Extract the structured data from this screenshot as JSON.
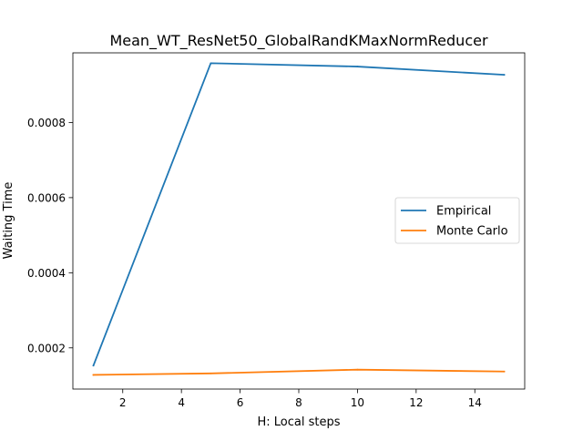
{
  "chart_data": {
    "type": "line",
    "title": "Mean_WT_ResNet50_GlobalRandKMaxNormReducer",
    "xlabel": "H: Local steps",
    "ylabel": "Waiting Time",
    "xlim": [
      0.3,
      15.7
    ],
    "ylim": [
      9.03e-05,
      0.0009855
    ],
    "x_ticks": [
      2,
      4,
      6,
      8,
      10,
      12,
      14
    ],
    "x_tick_labels": [
      "2",
      "4",
      "6",
      "8",
      "10",
      "12",
      "14"
    ],
    "y_ticks": [
      0.0002,
      0.0004,
      0.0006,
      0.0008
    ],
    "y_tick_labels": [
      "0.0002",
      "0.0004",
      "0.0006",
      "0.0008"
    ],
    "grid": false,
    "legend_position": "center-right",
    "x": [
      1,
      5,
      10,
      15
    ],
    "series": [
      {
        "name": "Empirical",
        "color": "#1f77b4",
        "values": [
          0.000153,
          0.000958,
          0.000949,
          0.000927
        ]
      },
      {
        "name": "Monte Carlo",
        "color": "#ff7f0e",
        "values": [
          0.000128,
          0.000132,
          0.000142,
          0.000137
        ]
      }
    ]
  }
}
